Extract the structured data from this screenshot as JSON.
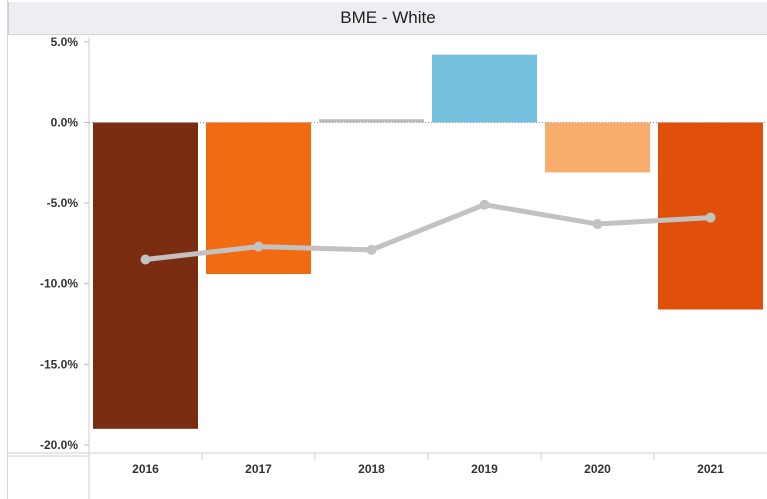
{
  "header": {
    "title": "BME - White"
  },
  "chart_data": {
    "type": "bar",
    "title": "BME - White",
    "categories": [
      "2016",
      "2017",
      "2018",
      "2019",
      "2020",
      "2021"
    ],
    "bar_values": [
      -19.0,
      -9.4,
      0.2,
      4.2,
      -3.1,
      -11.6
    ],
    "bar_colors": [
      "#7b2d12",
      "#f26a12",
      "#bcbcbc",
      "#73c0df",
      "#f9ad6c",
      "#e0500a"
    ],
    "line_series": {
      "values": [
        -8.5,
        -7.7,
        -7.9,
        -5.1,
        -6.3,
        -5.9
      ],
      "color": "#c2c2c2"
    },
    "ylim": [
      -20.5,
      5.3
    ],
    "yticks": [
      5,
      0,
      -5,
      -10,
      -15,
      -20
    ],
    "ytick_labels": [
      "5.0%",
      "0.0%",
      "-5.0%",
      "-10.0%",
      "-15.0%",
      "-20.0%"
    ],
    "zero_line": "dotted",
    "grid": false,
    "legend": "none"
  }
}
